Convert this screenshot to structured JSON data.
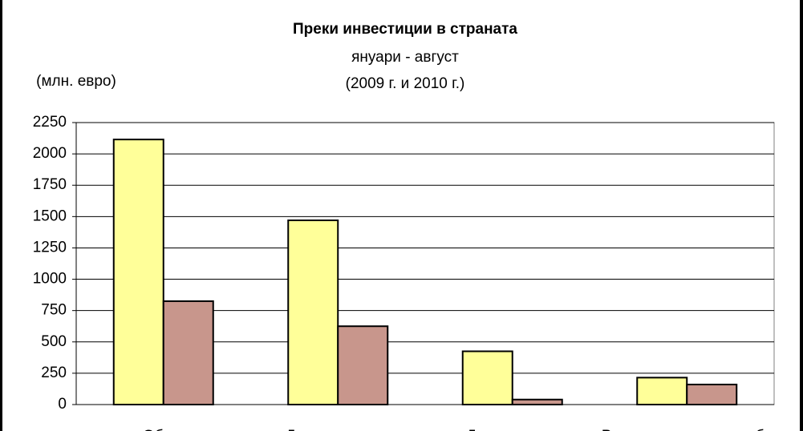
{
  "chart_data": {
    "type": "bar",
    "title": "Преки  инвестиции в страната",
    "subtitle": "януари - август",
    "subtitle2": "(2009 г. и 2010 г.)",
    "y_label": "(млн. евро)",
    "categories": [
      "Общо",
      "Дялов капитал",
      "Друг капитал",
      "Реинвестирана печалба"
    ],
    "series": [
      {
        "color": "#ffff99",
        "values": [
          2115,
          1470,
          425,
          215
        ]
      },
      {
        "color": "#c8968c",
        "values": [
          825,
          625,
          40,
          160
        ]
      }
    ],
    "ylim": [
      0,
      2250
    ],
    "yticks": [
      0,
      250,
      500,
      750,
      1000,
      1250,
      1500,
      1750,
      2000,
      2250
    ],
    "grid": true
  }
}
